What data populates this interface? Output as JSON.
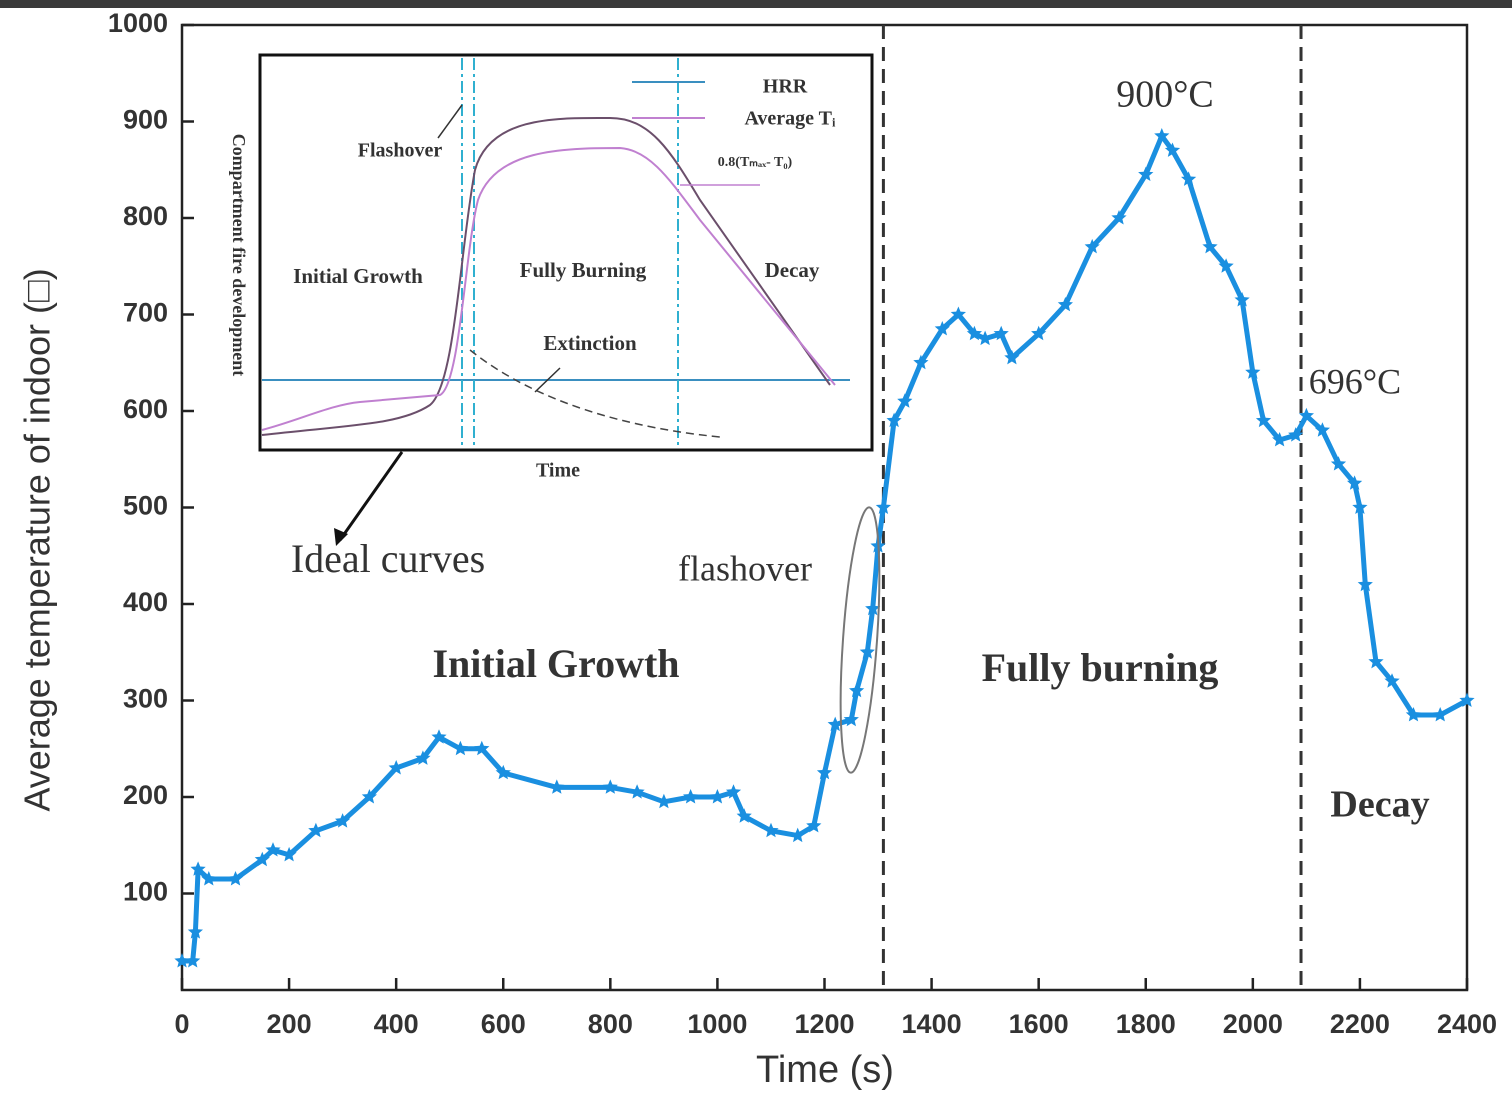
{
  "chart_data": {
    "type": "line",
    "x_label": "Time (s)",
    "y_label": "Average temperature of indoor (□)",
    "xlim": [
      0,
      2400
    ],
    "xticks": [
      0,
      200,
      400,
      600,
      800,
      1000,
      1200,
      1400,
      1600,
      1800,
      2000,
      2200,
      2400
    ],
    "ylim": [
      0,
      1000
    ],
    "yticks": [
      100,
      200,
      300,
      400,
      500,
      600,
      700,
      800,
      900,
      1000
    ],
    "color": "#1a8fe0",
    "vlines": [
      1310,
      2090
    ],
    "x": [
      0,
      20,
      25,
      30,
      50,
      100,
      150,
      170,
      200,
      250,
      300,
      350,
      400,
      450,
      480,
      520,
      560,
      600,
      700,
      800,
      850,
      900,
      950,
      1000,
      1030,
      1050,
      1100,
      1150,
      1180,
      1200,
      1220,
      1250,
      1260,
      1280,
      1290,
      1300,
      1310,
      1330,
      1350,
      1380,
      1420,
      1450,
      1480,
      1500,
      1530,
      1550,
      1600,
      1650,
      1700,
      1750,
      1800,
      1830,
      1850,
      1880,
      1920,
      1950,
      1980,
      2000,
      2020,
      2050,
      2080,
      2100,
      2130,
      2160,
      2190,
      2200,
      2210,
      2230,
      2260,
      2300,
      2350,
      2400
    ],
    "values": [
      30,
      30,
      60,
      125,
      115,
      115,
      135,
      145,
      140,
      165,
      175,
      200,
      230,
      240,
      262,
      250,
      250,
      225,
      210,
      210,
      205,
      195,
      200,
      200,
      205,
      180,
      165,
      160,
      170,
      225,
      275,
      280,
      310,
      350,
      395,
      460,
      500,
      590,
      610,
      650,
      685,
      700,
      680,
      675,
      680,
      655,
      680,
      710,
      770,
      800,
      845,
      885,
      870,
      840,
      770,
      750,
      715,
      640,
      590,
      570,
      575,
      595,
      580,
      545,
      525,
      500,
      420,
      340,
      320,
      285,
      285,
      300
    ],
    "annotations": [
      "900°C",
      "696°C",
      "Ideal curves",
      "flashover",
      "Initial Growth",
      "Fully burning",
      "Decay"
    ],
    "inset": {
      "y_label": "Compartment fire development",
      "x_label": "Time",
      "legend": [
        "HRR",
        "Average Tᵢ"
      ],
      "threshold": "0.8(Tₘₐₓ- T₀)",
      "labels": [
        "Flashover",
        "Initial Growth",
        "Fully Burning",
        "Decay",
        "Extinction"
      ]
    }
  }
}
